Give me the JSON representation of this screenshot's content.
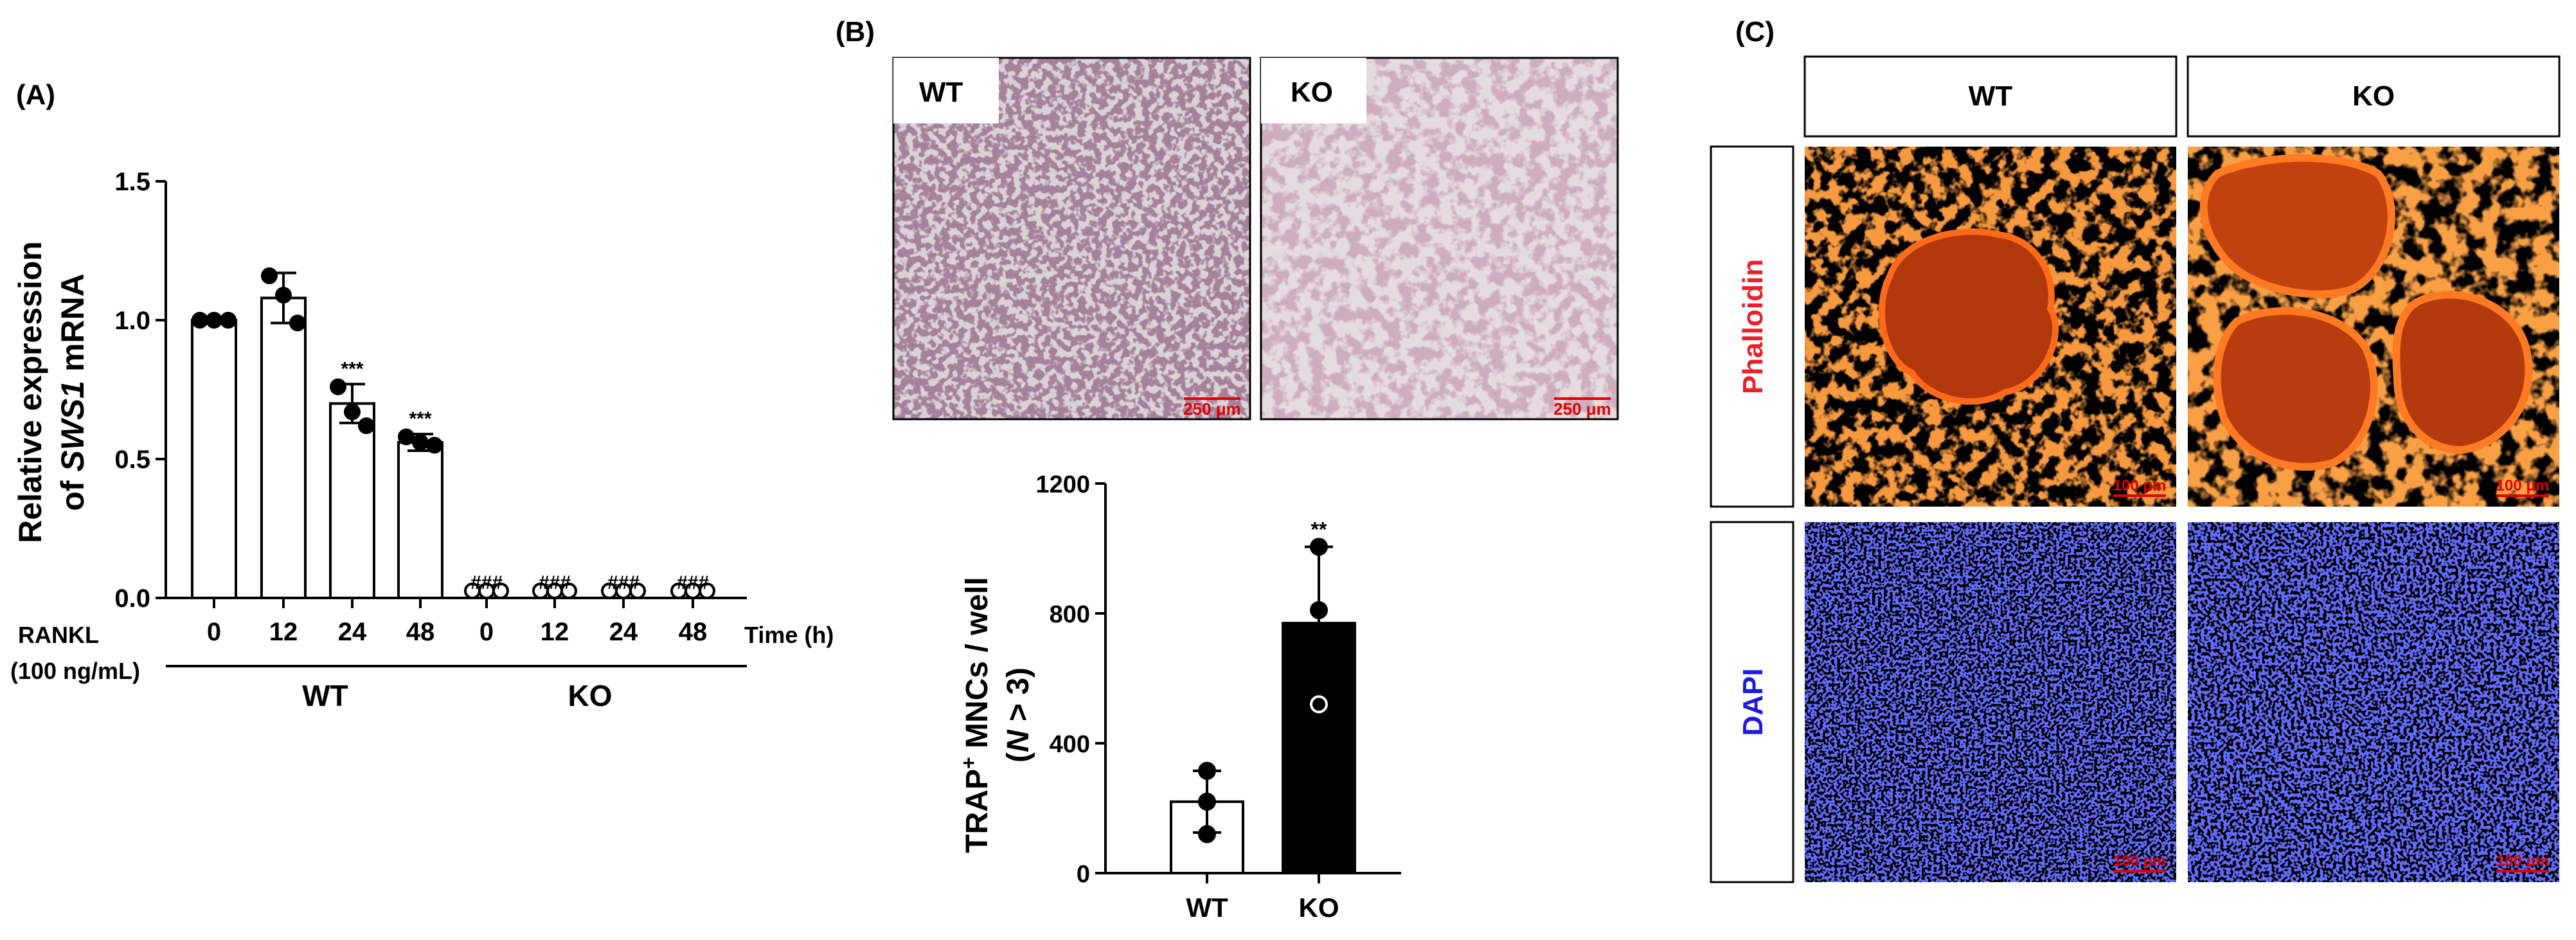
{
  "panel_labels": {
    "a": "(A)",
    "b": "(B)",
    "c": "(C)"
  },
  "panel_a": {
    "ylabel_line1": "Relative expression",
    "ylabel_line2_prefix": "of ",
    "ylabel_gene": "SWS1",
    "ylabel_line2_suffix": " mRNA",
    "rankl_line1": "RANKL",
    "rankl_line2": "(100 ng/mL)",
    "time_label": "Time (h)",
    "group_wt": "WT",
    "group_ko": "KO"
  },
  "panel_b": {
    "img_wt_label": "WT",
    "img_ko_label": "KO",
    "scale_wt": "250 μm",
    "scale_ko": "250 μm",
    "ylabel_line1_pre": "TRAP",
    "ylabel_sup": "+",
    "ylabel_line1_post": " MNCs / well",
    "ylabel_line2_pre": "(",
    "ylabel_n": "N",
    "ylabel_line2_post": " > 3)"
  },
  "panel_c": {
    "col_wt": "WT",
    "col_ko": "KO",
    "row_phalloidin": "Phalloidin",
    "row_dapi": "DAPI",
    "scale_1": "100 μm",
    "scale_2": "100 μm",
    "scale_3": "100 μm",
    "scale_4": "100 μm",
    "colors": {
      "phalloidin": "#e8202a",
      "dapi": "#1a1ae6",
      "bg": "#000000"
    }
  },
  "chart_data": [
    {
      "type": "bar",
      "panel": "A",
      "categories": [
        "0",
        "12",
        "24",
        "48",
        "0",
        "12",
        "24",
        "48"
      ],
      "groups": [
        "WT",
        "WT",
        "WT",
        "WT",
        "KO",
        "KO",
        "KO",
        "KO"
      ],
      "values": [
        1.0,
        1.08,
        0.7,
        0.56,
        0.0,
        0.0,
        0.0,
        0.0
      ],
      "errors": [
        0.0,
        0.09,
        0.07,
        0.03,
        0.0,
        0.0,
        0.0,
        0.0
      ],
      "points": [
        [
          1.0,
          1.0,
          1.0
        ],
        [
          1.16,
          1.09,
          0.99
        ],
        [
          0.76,
          0.67,
          0.62
        ],
        [
          0.58,
          0.56,
          0.55
        ],
        [
          0.0,
          0.0,
          0.0
        ],
        [
          0.0,
          0.0,
          0.0
        ],
        [
          0.0,
          0.0,
          0.0
        ],
        [
          0.0,
          0.0,
          0.0
        ]
      ],
      "significance": [
        "",
        "",
        "***",
        "***",
        "###",
        "###",
        "###",
        "###"
      ],
      "bar_fill": "#ffffff",
      "ylim": [
        0,
        1.5
      ],
      "yticks": [
        "0.0",
        "0.5",
        "1.0",
        "1.5"
      ],
      "xlabel": "Time (h)",
      "grid": false
    },
    {
      "type": "bar",
      "panel": "B",
      "categories": [
        "WT",
        "KO"
      ],
      "values": [
        220,
        770
      ],
      "errors": [
        95,
        235
      ],
      "points": [
        [
          315,
          220,
          120
        ],
        [
          1005,
          810,
          520
        ]
      ],
      "point_style": [
        "filled",
        "open"
      ],
      "bar_fills": [
        "#ffffff",
        "#000000"
      ],
      "significance": [
        "",
        "**"
      ],
      "ylim": [
        0,
        1200
      ],
      "yticks": [
        "0",
        "400",
        "800",
        "1200"
      ],
      "grid": false
    }
  ]
}
